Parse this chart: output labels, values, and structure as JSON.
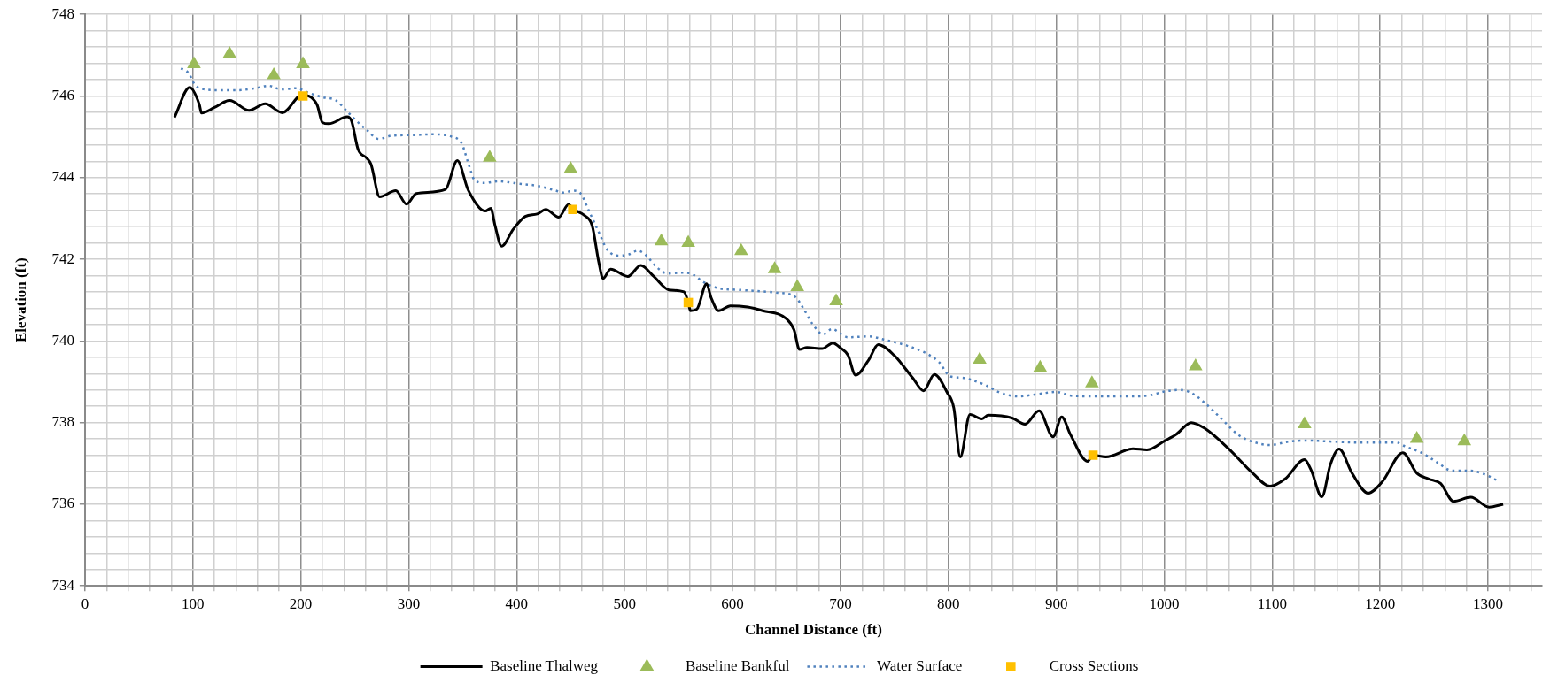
{
  "chart_data": {
    "type": "line",
    "xlabel": "Channel Distance (ft)",
    "ylabel": "Elevation (ft)",
    "xlim": [
      0,
      1350
    ],
    "xticks": [
      0,
      {
        "value": 20,
        "label": null
      },
      {
        "value": 40,
        "label": null
      },
      {
        "value": 60,
        "label": null
      },
      {
        "value": 80,
        "label": null
      },
      100,
      {
        "value": 120,
        "label": null
      },
      {
        "value": 140,
        "label": null
      },
      {
        "value": 160,
        "label": null
      },
      {
        "value": 180,
        "label": null
      },
      200,
      {
        "value": 220,
        "label": null
      },
      {
        "value": 240,
        "label": null
      },
      {
        "value": 260,
        "label": null
      },
      {
        "value": 280,
        "label": null
      },
      300,
      {
        "value": 320,
        "label": null
      },
      {
        "value": 340,
        "label": null
      },
      {
        "value": 360,
        "label": null
      },
      {
        "value": 380,
        "label": null
      },
      400,
      {
        "value": 420,
        "label": null
      },
      {
        "value": 440,
        "label": null
      },
      {
        "value": 460,
        "label": null
      },
      {
        "value": 480,
        "label": null
      },
      500,
      {
        "value": 520,
        "label": null
      },
      {
        "value": 540,
        "label": null
      },
      {
        "value": 560,
        "label": null
      },
      {
        "value": 580,
        "label": null
      },
      600,
      {
        "value": 620,
        "label": null
      },
      {
        "value": 640,
        "label": null
      },
      {
        "value": 660,
        "label": null
      },
      {
        "value": 680,
        "label": null
      },
      700,
      {
        "value": 720,
        "label": null
      },
      {
        "value": 740,
        "label": null
      },
      {
        "value": 760,
        "label": null
      },
      {
        "value": 780,
        "label": null
      },
      800,
      {
        "value": 820,
        "label": null
      },
      {
        "value": 840,
        "label": null
      },
      {
        "value": 860,
        "label": null
      },
      {
        "value": 880,
        "label": null
      },
      900,
      {
        "value": 920,
        "label": null
      },
      {
        "value": 940,
        "label": null
      },
      {
        "value": 960,
        "label": null
      },
      {
        "value": 980,
        "label": null
      },
      1000,
      {
        "value": 1020,
        "label": null
      },
      {
        "value": 1040,
        "label": null
      },
      {
        "value": 1060,
        "label": null
      },
      {
        "value": 1080,
        "label": null
      },
      1100,
      {
        "value": 1120,
        "label": null
      },
      {
        "value": 1140,
        "label": null
      },
      {
        "value": 1160,
        "label": null
      },
      {
        "value": 1180,
        "label": null
      },
      1200,
      {
        "value": 1220,
        "label": null
      },
      {
        "value": 1240,
        "label": null
      },
      {
        "value": 1260,
        "label": null
      },
      {
        "value": 1280,
        "label": null
      },
      1300,
      {
        "value": 1320,
        "label": null
      },
      {
        "value": 1340,
        "label": null
      }
    ],
    "ylim": [
      734,
      748
    ],
    "yticks": [
      734,
      {
        "value": 734.4,
        "label": null
      },
      {
        "value": 734.8,
        "label": null
      },
      {
        "value": 735.2,
        "label": null
      },
      {
        "value": 735.6,
        "label": null
      },
      736,
      {
        "value": 736.4,
        "label": null
      },
      {
        "value": 736.8,
        "label": null
      },
      {
        "value": 737.2,
        "label": null
      },
      {
        "value": 737.6,
        "label": null
      },
      738,
      {
        "value": 738.4,
        "label": null
      },
      {
        "value": 738.8,
        "label": null
      },
      {
        "value": 739.2,
        "label": null
      },
      {
        "value": 739.6,
        "label": null
      },
      740,
      {
        "value": 740.4,
        "label": null
      },
      {
        "value": 740.8,
        "label": null
      },
      {
        "value": 741.2,
        "label": null
      },
      {
        "value": 741.6,
        "label": null
      },
      742,
      {
        "value": 742.4,
        "label": null
      },
      {
        "value": 742.8,
        "label": null
      },
      {
        "value": 743.2,
        "label": null
      },
      {
        "value": 743.6,
        "label": null
      },
      744,
      {
        "value": 744.4,
        "label": null
      },
      {
        "value": 744.8,
        "label": null
      },
      {
        "value": 745.2,
        "label": null
      },
      {
        "value": 745.6,
        "label": null
      },
      746,
      {
        "value": 746.4,
        "label": null
      },
      {
        "value": 746.8,
        "label": null
      },
      {
        "value": 747.2,
        "label": null
      },
      {
        "value": 747.6,
        "label": null
      },
      748
    ],
    "grid": true,
    "legend": "bottom",
    "series": [
      {
        "name": "Baseline Thalweg",
        "color": "#000000",
        "x": [
          83,
          97,
          106,
          108,
          120,
          134,
          152,
          167,
          183,
          201,
          215,
          220,
          226,
          243,
          247,
          253,
          261,
          265,
          273,
          288,
          298,
          307,
          334,
          345,
          355,
          371,
          376,
          380,
          386,
          397,
          408,
          419,
          427,
          439,
          448,
          453,
          463,
          470,
          476,
          480,
          487,
          503,
          515,
          527,
          541,
          555,
          559,
          561,
          567,
          576,
          580,
          587,
          598,
          614,
          628,
          650,
          657,
          662,
          669,
          683,
          693,
          700,
          707,
          714,
          726,
          735,
          750,
          767,
          777,
          787,
          799,
          805,
          811,
          820,
          831,
          837,
          859,
          871,
          884,
          897,
          905,
          913,
          929,
          934,
          946,
          971,
          984,
          1001,
          1011,
          1025,
          1038,
          1060,
          1082,
          1098,
          1112,
          1130,
          1136,
          1146,
          1154,
          1162,
          1174,
          1189,
          1202,
          1221,
          1234,
          1245,
          1256,
          1268,
          1284,
          1301,
          1314
        ],
        "values": [
          745.48,
          746.21,
          745.79,
          745.58,
          745.72,
          745.89,
          745.65,
          745.81,
          745.59,
          746.02,
          745.79,
          745.35,
          745.32,
          745.49,
          745.39,
          744.7,
          744.48,
          744.33,
          743.53,
          743.68,
          743.35,
          743.61,
          743.71,
          744.42,
          743.7,
          743.18,
          743.25,
          742.82,
          742.32,
          742.74,
          743.05,
          743.11,
          743.22,
          743.03,
          743.34,
          743.22,
          743.07,
          742.82,
          741.94,
          741.53,
          741.76,
          741.58,
          741.85,
          741.58,
          741.25,
          741.2,
          740.94,
          740.74,
          740.78,
          741.4,
          741.07,
          740.74,
          740.86,
          740.83,
          740.74,
          740.54,
          740.27,
          739.79,
          739.84,
          739.81,
          739.95,
          739.83,
          739.65,
          739.16,
          739.53,
          739.91,
          739.64,
          739.09,
          738.78,
          739.18,
          738.73,
          738.36,
          737.16,
          738.2,
          738.09,
          738.18,
          738.11,
          737.96,
          738.29,
          737.65,
          738.14,
          737.71,
          737.05,
          737.2,
          737.16,
          737.36,
          737.33,
          737.56,
          737.71,
          738.0,
          737.85,
          737.35,
          736.76,
          736.44,
          736.62,
          737.09,
          736.84,
          736.18,
          736.98,
          737.35,
          736.76,
          736.27,
          736.55,
          737.26,
          736.76,
          736.62,
          736.51,
          736.07,
          736.17,
          735.93,
          736.0
        ]
      },
      {
        "name": "Baseline Bankful",
        "type": "scatter",
        "marker": "triangle",
        "color": "#9bbb59",
        "x": [
          101,
          134,
          175,
          202,
          375,
          450,
          534,
          559,
          608,
          639,
          660,
          696,
          829,
          885,
          933,
          1029,
          1130,
          1234,
          1278
        ],
        "values": [
          746.78,
          747.03,
          746.51,
          746.78,
          744.49,
          744.21,
          742.44,
          742.4,
          742.2,
          741.76,
          741.32,
          740.97,
          739.54,
          739.34,
          738.96,
          739.38,
          737.96,
          737.6,
          737.54
        ]
      },
      {
        "name": "Water Surface",
        "line_style": "dotted",
        "color": "#4f81bd",
        "x": [
          89,
          96,
          102,
          109,
          125,
          141,
          158,
          170,
          182,
          196,
          207,
          220,
          232,
          242,
          250,
          261,
          272,
          285,
          302,
          321,
          340,
          349,
          355,
          361,
          370,
          383,
          402,
          419,
          435,
          444,
          452,
          459,
          467,
          476,
          484,
          495,
          504,
          512,
          519,
          530,
          540,
          552,
          560,
          574,
          587,
          606,
          628,
          642,
          658,
          666,
          674,
          684,
          692,
          707,
          726,
          742,
          761,
          780,
          791,
          802,
          813,
          821,
          835,
          848,
          865,
          881,
          900,
          916,
          943,
          971,
          987,
          1000,
          1014,
          1025,
          1038,
          1055,
          1068,
          1082,
          1098,
          1115,
          1131,
          1158,
          1180,
          1202,
          1215,
          1223,
          1240,
          1253,
          1267,
          1283,
          1297,
          1310
        ],
        "values": [
          746.68,
          746.56,
          746.27,
          746.17,
          746.14,
          746.14,
          746.19,
          746.25,
          746.16,
          746.19,
          746.08,
          745.97,
          745.9,
          745.65,
          745.43,
          745.17,
          744.95,
          745.03,
          745.04,
          745.06,
          745.0,
          744.84,
          744.37,
          743.94,
          743.87,
          743.91,
          743.85,
          743.8,
          743.69,
          743.63,
          743.68,
          743.62,
          743.18,
          742.67,
          742.23,
          742.09,
          742.12,
          742.21,
          742.12,
          741.8,
          741.65,
          741.67,
          741.66,
          741.43,
          741.29,
          741.25,
          741.21,
          741.18,
          741.08,
          740.78,
          740.42,
          740.16,
          740.29,
          740.09,
          740.11,
          740.02,
          739.89,
          739.69,
          739.49,
          739.13,
          739.1,
          739.05,
          738.91,
          738.73,
          738.64,
          738.69,
          738.75,
          738.65,
          738.64,
          738.64,
          738.67,
          738.76,
          738.8,
          738.73,
          738.47,
          738.04,
          737.71,
          737.53,
          737.45,
          737.53,
          737.56,
          737.53,
          737.51,
          737.51,
          737.51,
          737.42,
          737.24,
          737.02,
          736.82,
          736.82,
          736.73,
          736.56
        ]
      },
      {
        "name": "Cross Sections",
        "type": "scatter",
        "marker": "square",
        "color": "#ffc000",
        "x": [
          202,
          452,
          559,
          934
        ],
        "values": [
          746.0,
          743.22,
          740.94,
          737.2
        ]
      }
    ]
  }
}
